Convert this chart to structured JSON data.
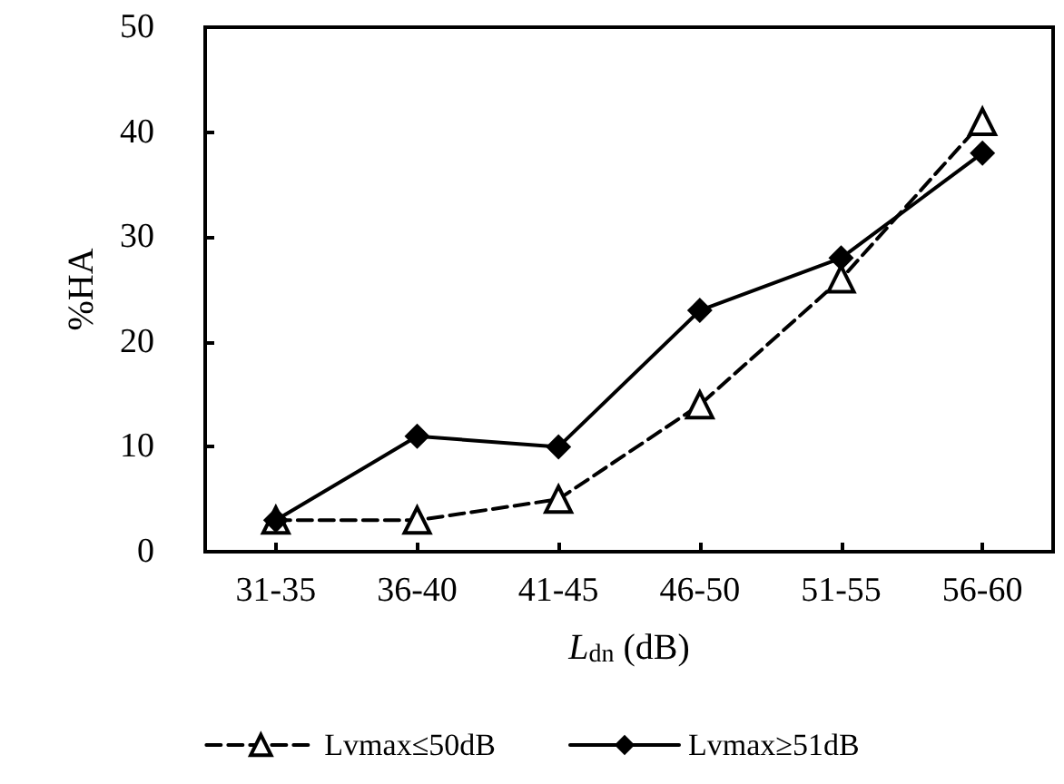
{
  "chart_data": {
    "type": "line",
    "xlabel": "L$_{dn}$ (dB)",
    "ylabel": "%HA",
    "categories": [
      "31-35",
      "36-40",
      "41-45",
      "46-50",
      "51-55",
      "56-60"
    ],
    "series": [
      {
        "name": "Lvmax≤50dB",
        "color": "#000000",
        "values": [
          3,
          3,
          5,
          14,
          26,
          41
        ],
        "marker": "triangle",
        "line_style": "dashed"
      },
      {
        "name": "Lvmax≥51dB",
        "color": "#000000",
        "values": [
          3,
          11,
          10,
          23,
          28,
          38
        ],
        "marker": "diamond",
        "line_style": "solid"
      }
    ],
    "ylim": [
      0,
      50
    ],
    "yticks": [
      0,
      10,
      20,
      30,
      40,
      50
    ],
    "grid": false,
    "legend": "bottom"
  }
}
